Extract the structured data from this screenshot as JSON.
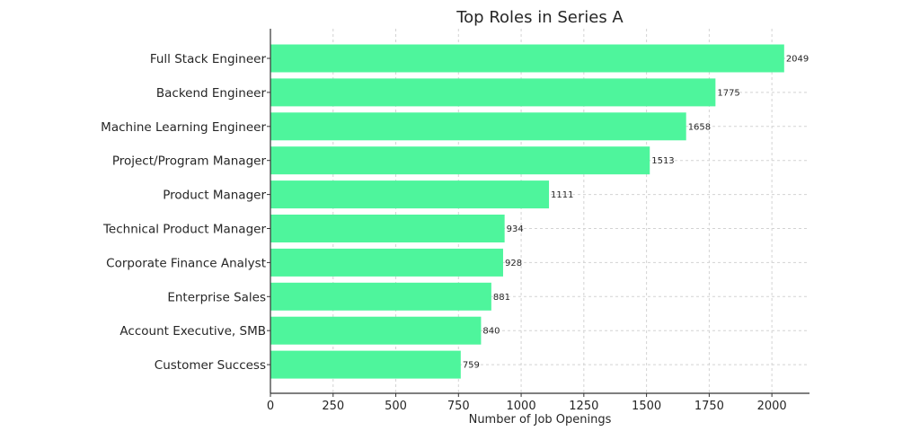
{
  "chart_data": {
    "type": "bar",
    "orientation": "horizontal",
    "title": "Top Roles in Series A",
    "xlabel": "Number of Job Openings",
    "ylabel": "",
    "categories": [
      "Full Stack Engineer",
      "Backend Engineer",
      "Machine Learning Engineer",
      "Project/Program Manager",
      "Product Manager",
      "Technical Product Manager",
      "Corporate Finance Analyst",
      "Enterprise Sales",
      "Account Executive, SMB",
      "Customer Success"
    ],
    "values": [
      2049,
      1775,
      1658,
      1513,
      1111,
      934,
      928,
      881,
      840,
      759
    ],
    "xlim": [
      0,
      2150
    ],
    "xticks": [
      0,
      250,
      500,
      750,
      1000,
      1250,
      1500,
      1750,
      2000
    ],
    "grid": true,
    "bar_color": "#4ef59c",
    "data_labels": true
  }
}
